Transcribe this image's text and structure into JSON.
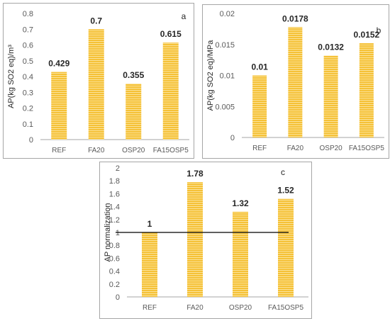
{
  "colors": {
    "bar": "#f5c137",
    "bar_stripe": "#fbe39a",
    "axis": "#a6a6a6",
    "refline": "#000000"
  },
  "chart_data": [
    {
      "id": "a",
      "type": "bar",
      "panel_label": "a",
      "categories": [
        "REF",
        "FA20",
        "OSP20",
        "FA15OSP5"
      ],
      "values": [
        0.429,
        0.7,
        0.355,
        0.615
      ],
      "data_labels": [
        "0.429",
        "0.7",
        "0.355",
        "0.615"
      ],
      "ylabel": "AP(kg SO2 eq)/m³",
      "ylim": [
        0,
        0.8
      ],
      "yticks": [
        "0",
        "0.1",
        "0.2",
        "0.3",
        "0.4",
        "0.5",
        "0.6",
        "0.7",
        "0.8"
      ],
      "grid": false
    },
    {
      "id": "b",
      "type": "bar",
      "panel_label": "b",
      "categories": [
        "REF",
        "FA20",
        "OSP20",
        "FA15OSP5"
      ],
      "values": [
        0.01,
        0.0178,
        0.0132,
        0.0152
      ],
      "data_labels": [
        "0.01",
        "0.0178",
        "0.0132",
        "0.0152"
      ],
      "ylabel": "AP(kg SO2 eq)/MPa",
      "ylim": [
        0,
        0.02
      ],
      "yticks": [
        "0",
        "0.005",
        "0.01",
        "0.015",
        "0.02"
      ],
      "grid": false
    },
    {
      "id": "c",
      "type": "bar",
      "panel_label": "c",
      "categories": [
        "REF",
        "FA20",
        "OSP20",
        "FA15OSP5"
      ],
      "values": [
        1,
        1.78,
        1.32,
        1.52
      ],
      "data_labels": [
        "1",
        "1.78",
        "1.32",
        "1.52"
      ],
      "ylabel": "AP normalization",
      "ylim": [
        0,
        2
      ],
      "yticks": [
        "0",
        "0.2",
        "0.4",
        "0.6",
        "0.8",
        "1",
        "1.2",
        "1.4",
        "1.6",
        "1.8",
        "2"
      ],
      "reference_line": 1,
      "grid": false
    }
  ]
}
